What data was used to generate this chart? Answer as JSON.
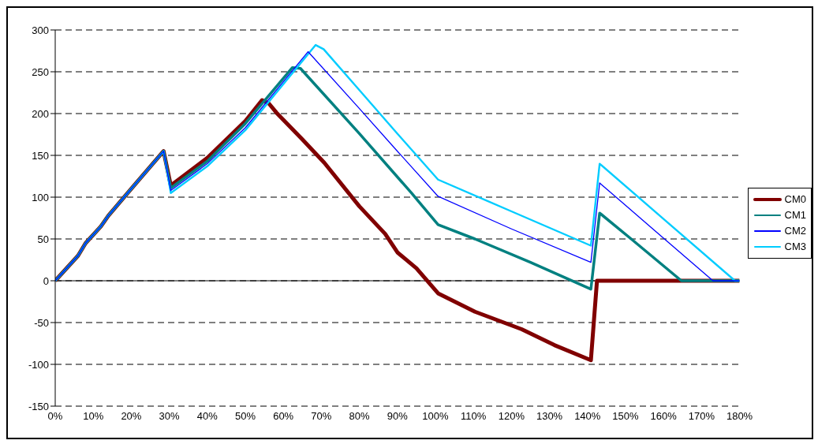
{
  "chart_data": {
    "type": "line",
    "xlim": [
      0,
      180
    ],
    "xticks": [
      {
        "value": 0,
        "label": "0%"
      },
      {
        "value": 10,
        "label": "10%"
      },
      {
        "value": 20,
        "label": "20%"
      },
      {
        "value": 30,
        "label": "30%"
      },
      {
        "value": 40,
        "label": "40%"
      },
      {
        "value": 50,
        "label": "50%"
      },
      {
        "value": 60,
        "label": "60%"
      },
      {
        "value": 70,
        "label": "70%"
      },
      {
        "value": 80,
        "label": "80%"
      },
      {
        "value": 90,
        "label": "90%"
      },
      {
        "value": 100,
        "label": "100%"
      },
      {
        "value": 110,
        "label": "110%"
      },
      {
        "value": 120,
        "label": "120%"
      },
      {
        "value": 130,
        "label": "130%"
      },
      {
        "value": 140,
        "label": "140%"
      },
      {
        "value": 150,
        "label": "150%"
      },
      {
        "value": 160,
        "label": "160%"
      },
      {
        "value": 170,
        "label": "170%"
      },
      {
        "value": 180,
        "label": "180%"
      }
    ],
    "ylim": [
      -150,
      300
    ],
    "yticks": [
      -150,
      -100,
      -50,
      0,
      50,
      100,
      150,
      200,
      250,
      300
    ],
    "grid": "y",
    "legend": "right",
    "marker": "none",
    "line_style": "solid",
    "series": [
      {
        "name": "CM0",
        "color": "#800000",
        "x": [
          0,
          6,
          8,
          12,
          14,
          20,
          28.5,
          30.4,
          40,
          50,
          54.4,
          56.2,
          58.2,
          65,
          70.8,
          80,
          86.8,
          90,
          95,
          100.7,
          110.4,
          122.7,
          131.3,
          140.9,
          142.5,
          180
        ],
        "values": [
          0,
          30,
          45,
          65,
          78,
          110,
          155,
          114,
          147,
          191,
          216,
          212,
          201,
          169,
          141,
          89,
          56,
          34,
          15,
          -15,
          -37,
          -58,
          -77,
          -95,
          0,
          0
        ]
      },
      {
        "name": "CM1",
        "color": "#008080",
        "x": [
          0,
          6,
          8,
          12,
          14,
          20,
          28.5,
          30.4,
          40,
          50,
          62.4,
          64.5,
          80,
          93.7,
          100.7,
          110.4,
          125,
          140.9,
          143.2,
          151.5,
          164.7,
          180
        ],
        "values": [
          0,
          30,
          45,
          65,
          78,
          110,
          155,
          111,
          143,
          188,
          255,
          254,
          176,
          105,
          67,
          50,
          22,
          -10,
          81,
          50,
          0,
          0
        ]
      },
      {
        "name": "CM2",
        "color": "#0000ff",
        "x": [
          0,
          6,
          8,
          12,
          14,
          20,
          28.5,
          30.4,
          40,
          50,
          66.5,
          80,
          90,
          100.7,
          120,
          140.9,
          143.2,
          160,
          173,
          180
        ],
        "values": [
          0,
          30,
          45,
          65,
          78,
          110,
          155,
          108,
          140,
          183,
          274,
          206,
          155,
          101,
          62,
          22,
          117,
          51,
          0,
          0
        ]
      },
      {
        "name": "CM3",
        "color": "#00ccff",
        "x": [
          0,
          6,
          8,
          12,
          14,
          20,
          28.5,
          30.4,
          40,
          50,
          68.5,
          70.6,
          80,
          90,
          100.7,
          120,
          140.9,
          143.2,
          160,
          178.8,
          180
        ],
        "values": [
          0,
          30,
          45,
          65,
          78,
          110,
          155,
          105,
          137,
          180,
          282,
          277,
          228,
          176,
          121,
          83,
          42,
          140,
          74,
          0,
          0
        ]
      }
    ]
  }
}
